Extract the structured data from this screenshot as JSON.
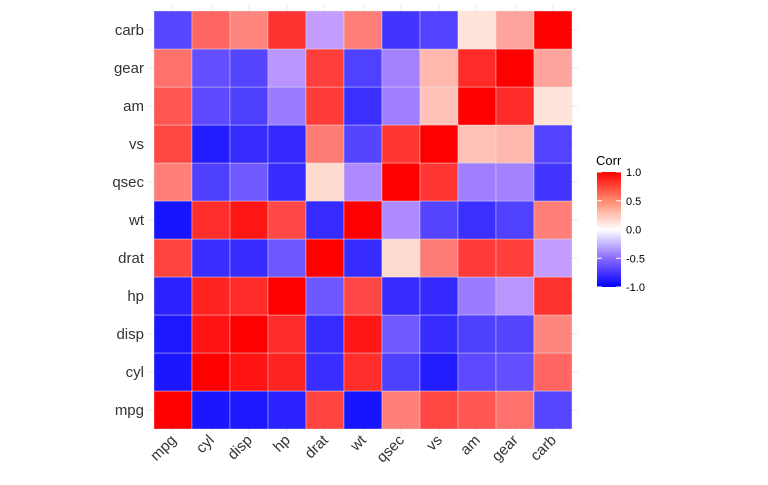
{
  "chart_data": {
    "type": "heatmap",
    "variables": [
      "mpg",
      "cyl",
      "disp",
      "hp",
      "drat",
      "wt",
      "qsec",
      "vs",
      "am",
      "gear",
      "carb"
    ],
    "matrix": [
      [
        1,
        -0.852,
        -0.848,
        -0.776,
        0.681,
        -0.868,
        0.419,
        0.664,
        0.6,
        0.48,
        -0.551
      ],
      [
        -0.852,
        1,
        0.902,
        0.832,
        -0.7,
        0.782,
        -0.591,
        -0.811,
        -0.523,
        -0.493,
        0.527
      ],
      [
        -0.848,
        0.902,
        1,
        0.791,
        -0.71,
        0.888,
        -0.434,
        -0.71,
        -0.591,
        -0.556,
        0.395
      ],
      [
        -0.776,
        0.832,
        0.791,
        1,
        -0.449,
        0.659,
        -0.708,
        -0.723,
        -0.243,
        -0.126,
        0.75
      ],
      [
        0.681,
        -0.7,
        -0.71,
        -0.449,
        1,
        -0.712,
        0.091,
        0.44,
        0.713,
        0.7,
        -0.091
      ],
      [
        -0.868,
        0.782,
        0.888,
        0.659,
        -0.712,
        1,
        -0.175,
        -0.555,
        -0.692,
        -0.583,
        0.428
      ],
      [
        0.419,
        -0.591,
        -0.434,
        -0.708,
        0.091,
        -0.175,
        1,
        0.745,
        -0.23,
        -0.213,
        -0.656
      ],
      [
        0.664,
        -0.811,
        -0.71,
        -0.723,
        0.44,
        -0.555,
        0.745,
        1,
        0.168,
        0.206,
        -0.57
      ],
      [
        0.6,
        -0.523,
        -0.591,
        -0.243,
        0.713,
        -0.692,
        -0.23,
        0.168,
        1,
        0.794,
        0.058
      ],
      [
        0.48,
        -0.493,
        -0.556,
        -0.126,
        0.7,
        -0.583,
        -0.213,
        0.206,
        0.794,
        1,
        0.274
      ],
      [
        -0.551,
        0.527,
        0.395,
        0.75,
        -0.091,
        0.428,
        -0.656,
        -0.57,
        0.058,
        0.274,
        1
      ]
    ],
    "legend": {
      "title": "Corr",
      "ticks": [
        "1.0",
        "0.5",
        "0.0",
        "-0.5",
        "-1.0"
      ],
      "tick_values": [
        1,
        0.5,
        0,
        -0.5,
        -1
      ],
      "placement": "right"
    },
    "colors": {
      "low": "#0000FF",
      "mid": "#FFFFFF",
      "high": "#FF0000"
    },
    "value_range": [
      -1,
      1
    ],
    "grid": true
  }
}
